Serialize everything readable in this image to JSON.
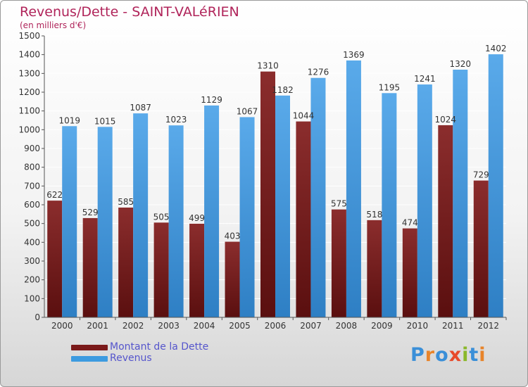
{
  "header": {
    "title": "Revenus/Dette - SAINT-VALéRIEN",
    "subtitle": "(en milliers d'€)"
  },
  "legend": [
    {
      "label": "Montant de la Dette",
      "color": "#7a1a1a"
    },
    {
      "label": "Revenus",
      "color": "#3d9be0"
    }
  ],
  "logo": {
    "text": "Proxiti",
    "letter_colors": [
      "#3a8fd8",
      "#e8842a",
      "#3a8fd8",
      "#e84a2a",
      "#8ab82a",
      "#3a8fd8",
      "#e8842a"
    ]
  },
  "colors": {
    "dette_top": "#8b2d2d",
    "dette_bottom": "#5a0f0f",
    "revenus_top": "#5aaaea",
    "revenus_bottom": "#2e7fc4",
    "grid": "#ffffff",
    "axis": "#555555"
  },
  "chart_data": {
    "type": "bar",
    "title": "Revenus/Dette - SAINT-VALéRIEN",
    "ylabel": "(en milliers d'€)",
    "xlabel": "",
    "ylim": [
      0,
      1500
    ],
    "ytick_step": 100,
    "categories": [
      "2000",
      "2001",
      "2002",
      "2003",
      "2004",
      "2005",
      "2006",
      "2007",
      "2008",
      "2009",
      "2010",
      "2011",
      "2012"
    ],
    "series": [
      {
        "name": "Montant de la Dette",
        "values": [
          622,
          529,
          585,
          505,
          499,
          403,
          1310,
          1044,
          575,
          518,
          474,
          1024,
          729
        ],
        "labels": [
          "622",
          "529",
          "585",
          "505",
          "499",
          "403",
          "1310",
          "1044",
          "575",
          "518",
          "474",
          "1024",
          "729"
        ]
      },
      {
        "name": "Revenus",
        "values": [
          1019,
          1015,
          1087,
          1023,
          1129,
          1067,
          1182,
          1276,
          1369,
          1195,
          1241,
          1320,
          1402
        ],
        "labels": [
          "1019",
          "1015",
          "1087",
          "1023",
          "1129",
          "1067",
          "1182",
          "1276",
          "1369",
          "1195",
          "1241",
          "1320",
          "1402"
        ]
      }
    ]
  }
}
